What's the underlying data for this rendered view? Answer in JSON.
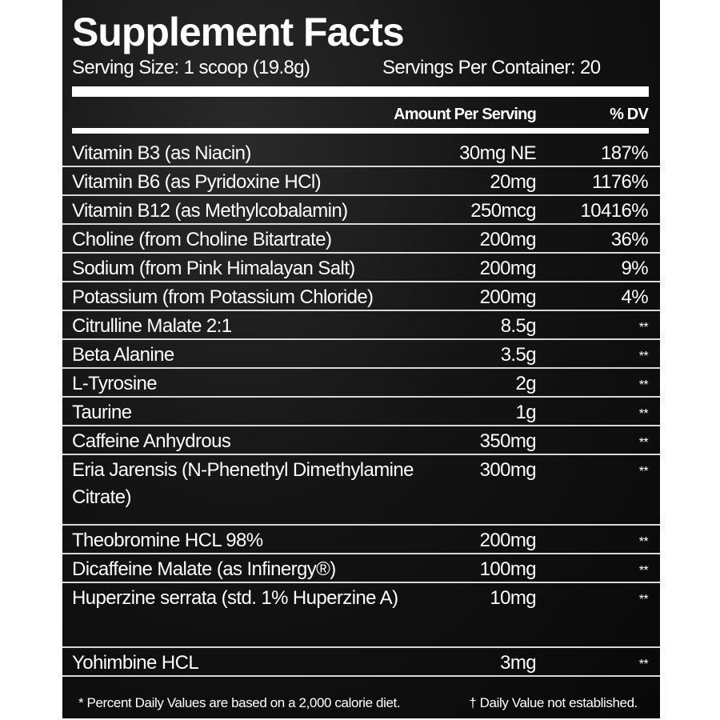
{
  "title": "Supplement Facts",
  "serving_size": "Serving Size: 1 scoop (19.8g)",
  "servings_per_container": "Servings Per Container: 20",
  "columns": {
    "amount": "Amount Per Serving",
    "dv": "% DV"
  },
  "rows": [
    {
      "name": "Vitamin B3 (as Niacin)",
      "amount": "30mg NE",
      "dv": "187%"
    },
    {
      "name": "Vitamin B6 (as Pyridoxine HCl)",
      "amount": "20mg",
      "dv": "1176%"
    },
    {
      "name": "Vitamin B12 (as Methylcobalamin)",
      "amount": "250mcg",
      "dv": "10416%"
    },
    {
      "name": "Choline (from Choline Bitartrate)",
      "amount": "200mg",
      "dv": "36%"
    },
    {
      "name": "Sodium (from Pink Himalayan Salt)",
      "amount": "200mg",
      "dv": "9%"
    },
    {
      "name": "Potassium (from Potassium Chloride)",
      "amount": "200mg",
      "dv": "4%"
    },
    {
      "name": "Citrulline Malate 2:1",
      "amount": "8.5g",
      "dv": "**"
    },
    {
      "name": "Beta Alanine",
      "amount": "3.5g",
      "dv": "**"
    },
    {
      "name": "L-Tyrosine",
      "amount": "2g",
      "dv": "**"
    },
    {
      "name": "Taurine",
      "amount": "1g",
      "dv": "**"
    },
    {
      "name": "Caffeine Anhydrous",
      "amount": "350mg",
      "dv": "**"
    },
    {
      "name": "Eria Jarensis (N-Phenethyl Dimethylamine Citrate)",
      "amount": "300mg",
      "dv": "**"
    },
    {
      "name": "Theobromine HCL 98%",
      "amount": "200mg",
      "dv": "**"
    },
    {
      "name": "Dicaffeine Malate (as Infinergy®)",
      "amount": "100mg",
      "dv": "**"
    },
    {
      "name": "Huperzine serrata (std. 1% Huperzine A)",
      "amount": "10mg",
      "dv": "**"
    },
    {
      "name": "Yohimbine HCL",
      "amount": "3mg",
      "dv": "**"
    }
  ],
  "footnotes": {
    "dv_note": "* Percent Daily Values are based on a 2,000 calorie diet.",
    "dagger_note": "† Daily Value not established."
  }
}
